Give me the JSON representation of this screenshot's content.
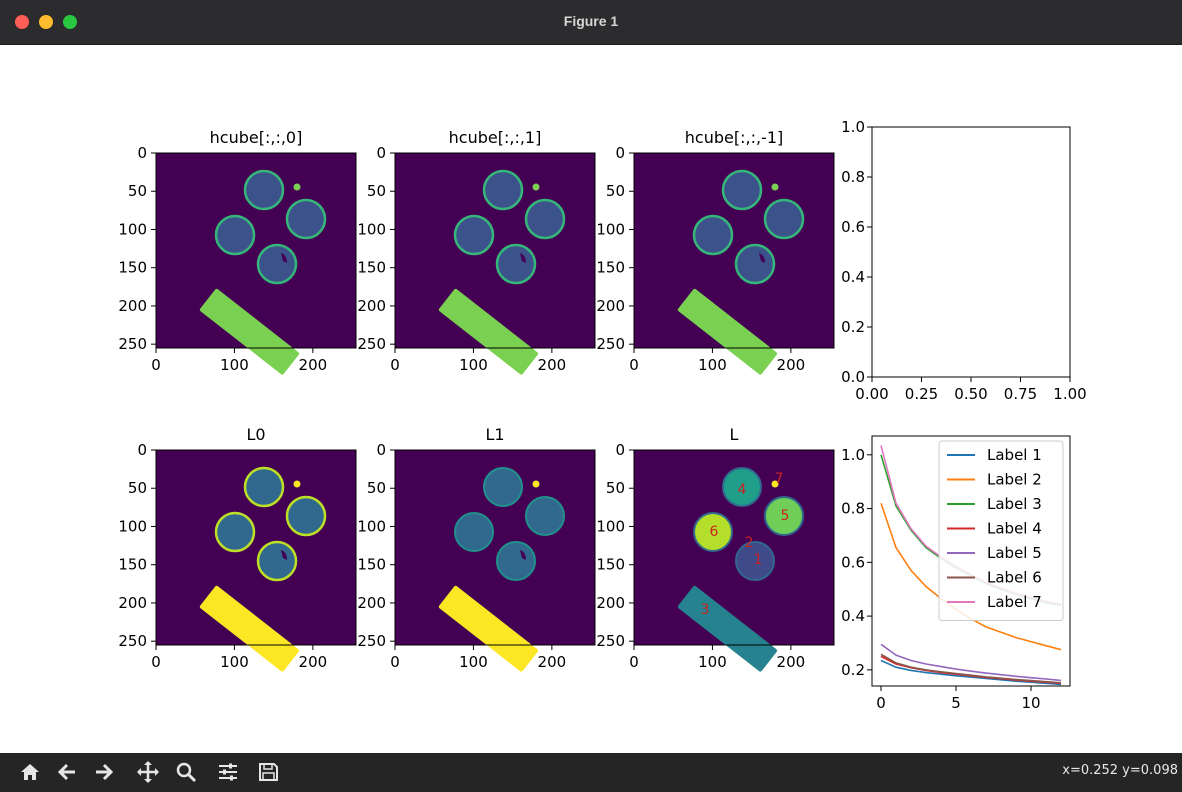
{
  "window": {
    "title": "Figure 1"
  },
  "colors": {
    "viridis_dark": "#440154",
    "viridis_mid": "#31688e",
    "viridis_teal": "#21918c",
    "viridis_green": "#5ec962",
    "viridis_yellow": "#fde725",
    "label_text": "#cc2222"
  },
  "toolbar": {
    "buttons": [
      {
        "icon": "home-icon"
      },
      {
        "icon": "back-arrow-icon"
      },
      {
        "icon": "forward-arrow-icon"
      },
      {
        "icon": "pan-icon"
      },
      {
        "icon": "zoom-icon"
      },
      {
        "icon": "configure-subplots-icon"
      },
      {
        "icon": "save-icon"
      }
    ],
    "coords": "x=0.252 y=0.098"
  },
  "panels": [
    {
      "id": "p1",
      "title": "hcube[:,:,0]"
    },
    {
      "id": "p2",
      "title": "hcube[:,:,1]"
    },
    {
      "id": "p3",
      "title": "hcube[:,:,-1]"
    },
    {
      "id": "p5",
      "title": "L0"
    },
    {
      "id": "p6",
      "title": "L1"
    },
    {
      "id": "p7",
      "title": "L"
    }
  ],
  "image_axes": {
    "xticks": [
      "0",
      "100",
      "200"
    ],
    "yticks": [
      "0",
      "50",
      "100",
      "150",
      "200",
      "250"
    ]
  },
  "region_labels": [
    {
      "text": "1"
    },
    {
      "text": "2"
    },
    {
      "text": "3"
    },
    {
      "text": "4"
    },
    {
      "text": "5"
    },
    {
      "text": "6"
    },
    {
      "text": "7"
    }
  ],
  "chart_data": [
    {
      "type": "line",
      "title": "",
      "x": [],
      "series": [],
      "xlim": [
        0,
        1
      ],
      "ylim": [
        0,
        1
      ],
      "xticks": [
        "0.00",
        "0.25",
        "0.50",
        "0.75",
        "1.00"
      ],
      "yticks": [
        "0.0",
        "0.2",
        "0.4",
        "0.6",
        "0.8",
        "1.0"
      ],
      "grid": false
    },
    {
      "type": "line",
      "title": "",
      "x": [
        0,
        1,
        2,
        3,
        4,
        5,
        6,
        7,
        8,
        9,
        10,
        11,
        12
      ],
      "xlim": [
        -0.6,
        12.6
      ],
      "ylim": [
        0.14,
        1.07
      ],
      "xticks": [
        "0",
        "5",
        "10"
      ],
      "yticks": [
        "0.2",
        "0.4",
        "0.6",
        "0.8",
        "1.0"
      ],
      "legend_position": "top-right",
      "grid": false,
      "series": [
        {
          "name": "Label 1",
          "color": "#1f77b4",
          "values": [
            0.235,
            0.21,
            0.198,
            0.19,
            0.184,
            0.178,
            0.173,
            0.168,
            0.163,
            0.158,
            0.154,
            0.15,
            0.146
          ]
        },
        {
          "name": "Label 2",
          "color": "#ff7f0e",
          "values": [
            0.82,
            0.655,
            0.57,
            0.51,
            0.465,
            0.425,
            0.39,
            0.36,
            0.34,
            0.32,
            0.305,
            0.29,
            0.275
          ]
        },
        {
          "name": "Label 3",
          "color": "#2ca02c",
          "values": [
            1.0,
            0.81,
            0.72,
            0.655,
            0.615,
            0.58,
            0.55,
            0.52,
            0.5,
            0.48,
            0.465,
            0.45,
            0.44
          ]
        },
        {
          "name": "Label 4",
          "color": "#d62728",
          "values": [
            0.25,
            0.222,
            0.208,
            0.198,
            0.19,
            0.184,
            0.178,
            0.172,
            0.167,
            0.162,
            0.158,
            0.154,
            0.15
          ]
        },
        {
          "name": "Label 5",
          "color": "#9467bd",
          "values": [
            0.295,
            0.255,
            0.235,
            0.222,
            0.212,
            0.203,
            0.195,
            0.188,
            0.182,
            0.176,
            0.171,
            0.166,
            0.161
          ]
        },
        {
          "name": "Label 6",
          "color": "#8c564b",
          "values": [
            0.258,
            0.226,
            0.21,
            0.2,
            0.193,
            0.186,
            0.18,
            0.174,
            0.169,
            0.164,
            0.16,
            0.156,
            0.152
          ]
        },
        {
          "name": "Label 7",
          "color": "#e377c2",
          "values": [
            1.035,
            0.82,
            0.725,
            0.66,
            0.62,
            0.585,
            0.555,
            0.525,
            0.505,
            0.485,
            0.47,
            0.455,
            0.445
          ]
        }
      ]
    }
  ]
}
